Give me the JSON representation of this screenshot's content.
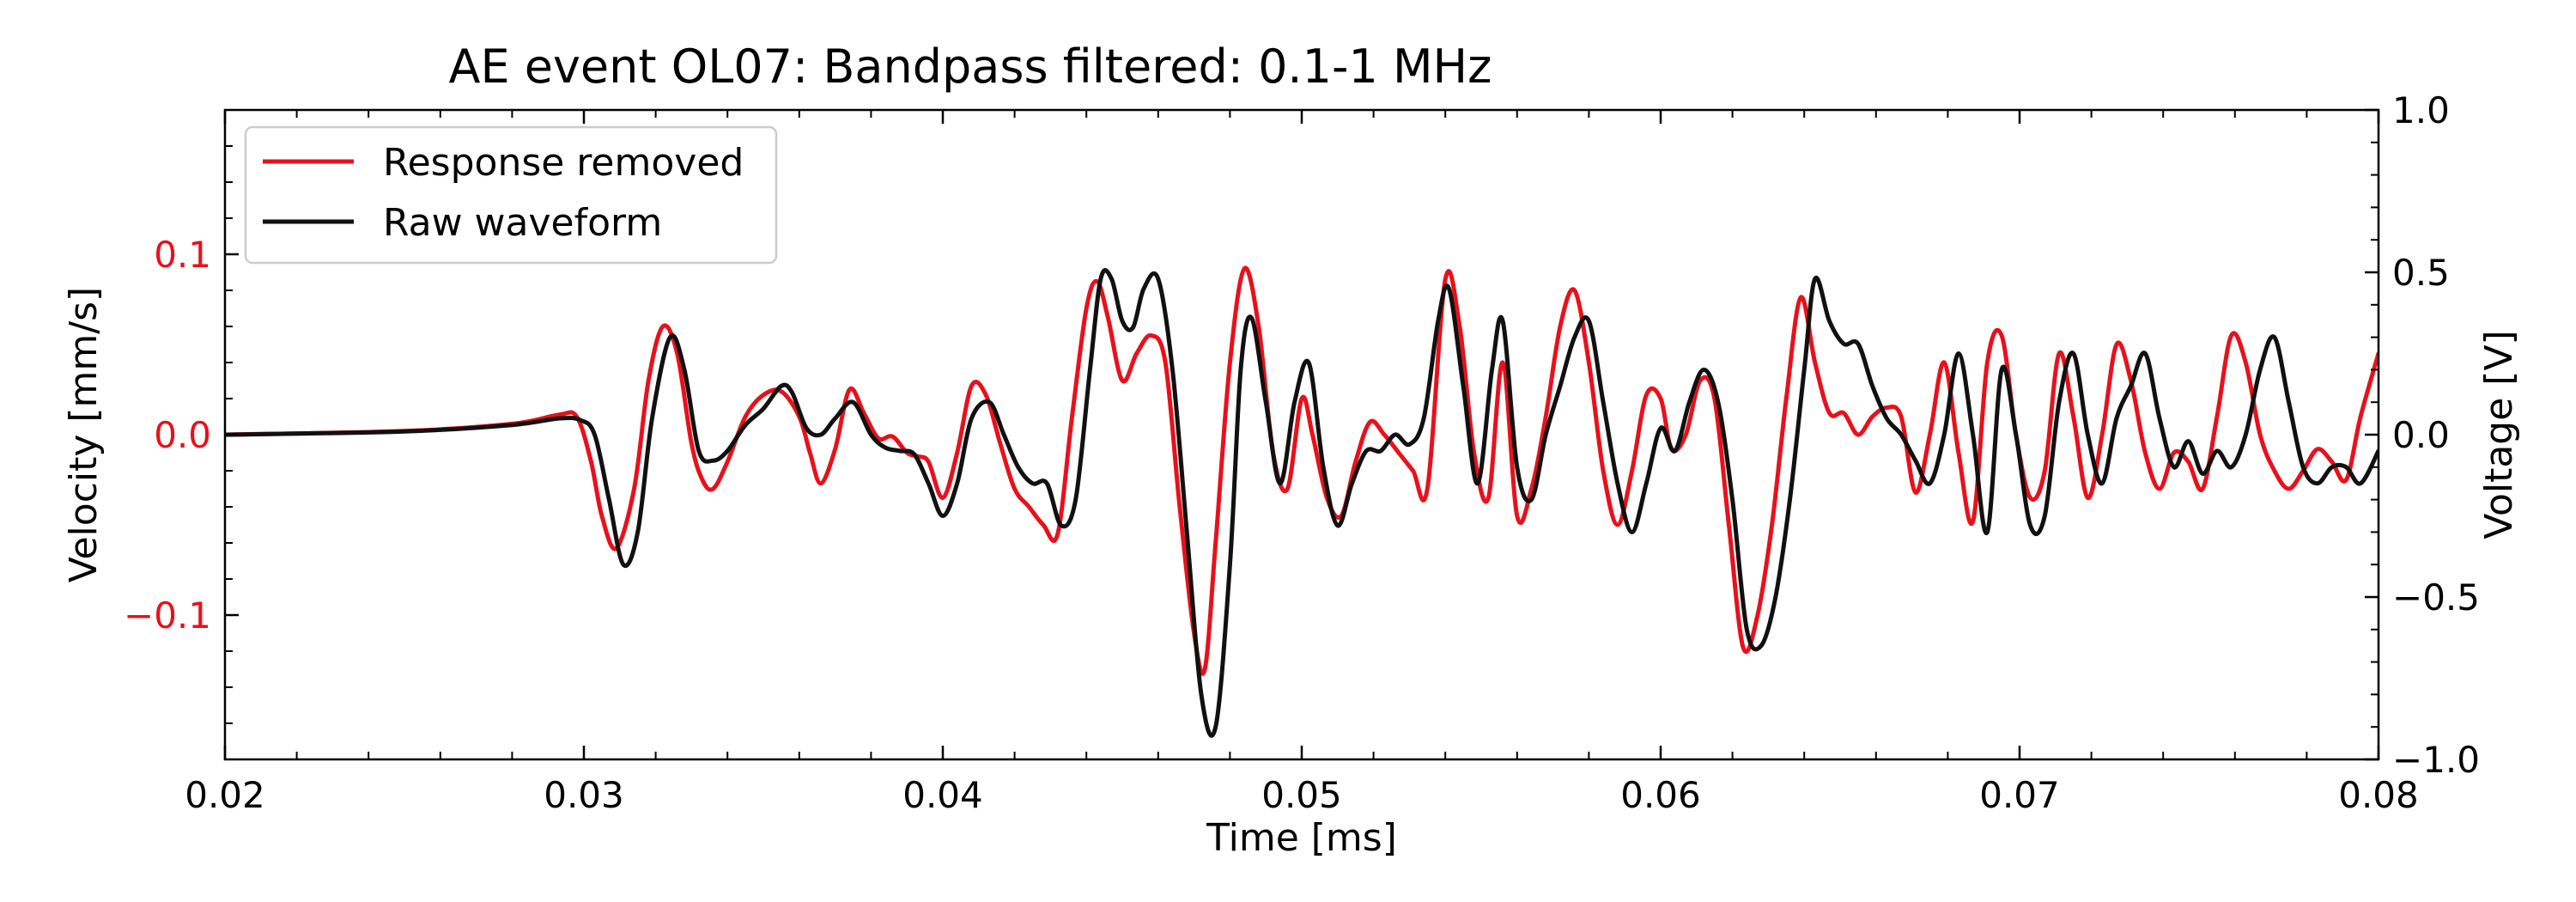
{
  "chart_data": {
    "type": "line",
    "title": "AE event OL07: Bandpass filtered: 0.1-1 MHz",
    "xlabel": "Time [ms]",
    "ylabel_left": "Velocity [mm/s]",
    "ylabel_right": "Voltage [V]",
    "xlim": [
      0.02,
      0.08
    ],
    "ylim_left": [
      -0.18,
      0.18
    ],
    "ylim_right": [
      -1.0,
      1.0
    ],
    "x_ticks": [
      0.02,
      0.03,
      0.04,
      0.05,
      0.06,
      0.07,
      0.08
    ],
    "x_tick_labels": [
      "0.02",
      "0.03",
      "0.04",
      "0.05",
      "0.06",
      "0.07",
      "0.08"
    ],
    "y_left_ticks": [
      -0.1,
      0.0,
      0.1
    ],
    "y_left_tick_labels": [
      "−0.1",
      "0.0",
      "0.1"
    ],
    "y_right_ticks": [
      -1.0,
      -0.5,
      0.0,
      0.5,
      1.0
    ],
    "y_right_tick_labels": [
      "−1.0",
      "−0.5",
      "0.0",
      "0.5",
      "1.0"
    ],
    "legend_position": "top-left",
    "grid": false,
    "colors": {
      "red": "#e8111b",
      "black": "#111111"
    },
    "series": [
      {
        "name": "Response removed",
        "axis": "left",
        "color": "#e8111b",
        "points": [
          [
            0.02,
            0.0
          ],
          [
            0.025,
            0.002
          ],
          [
            0.028,
            0.006
          ],
          [
            0.0293,
            0.011
          ],
          [
            0.0298,
            0.01
          ],
          [
            0.0302,
            -0.015
          ],
          [
            0.0305,
            -0.045
          ],
          [
            0.0309,
            -0.063
          ],
          [
            0.0314,
            -0.03
          ],
          [
            0.0318,
            0.03
          ],
          [
            0.0322,
            0.06
          ],
          [
            0.0326,
            0.045
          ],
          [
            0.033,
            -0.005
          ],
          [
            0.0333,
            -0.025
          ],
          [
            0.0336,
            -0.03
          ],
          [
            0.034,
            -0.015
          ],
          [
            0.0345,
            0.01
          ],
          [
            0.035,
            0.022
          ],
          [
            0.0355,
            0.024
          ],
          [
            0.036,
            0.01
          ],
          [
            0.0363,
            -0.01
          ],
          [
            0.0366,
            -0.027
          ],
          [
            0.037,
            -0.008
          ],
          [
            0.0374,
            0.025
          ],
          [
            0.0378,
            0.012
          ],
          [
            0.0382,
            -0.002
          ],
          [
            0.0386,
            -0.001
          ],
          [
            0.039,
            -0.01
          ],
          [
            0.0393,
            -0.012
          ],
          [
            0.0396,
            -0.015
          ],
          [
            0.04,
            -0.035
          ],
          [
            0.0404,
            -0.01
          ],
          [
            0.0408,
            0.027
          ],
          [
            0.0412,
            0.022
          ],
          [
            0.0416,
            -0.005
          ],
          [
            0.042,
            -0.03
          ],
          [
            0.0424,
            -0.04
          ],
          [
            0.0428,
            -0.05
          ],
          [
            0.0432,
            -0.055
          ],
          [
            0.0436,
            0.01
          ],
          [
            0.044,
            0.07
          ],
          [
            0.0443,
            0.085
          ],
          [
            0.0446,
            0.065
          ],
          [
            0.045,
            0.03
          ],
          [
            0.0454,
            0.045
          ],
          [
            0.0458,
            0.055
          ],
          [
            0.0462,
            0.04
          ],
          [
            0.0466,
            -0.04
          ],
          [
            0.047,
            -0.11
          ],
          [
            0.0473,
            -0.13
          ],
          [
            0.0476,
            -0.06
          ],
          [
            0.048,
            0.04
          ],
          [
            0.0484,
            0.092
          ],
          [
            0.0488,
            0.06
          ],
          [
            0.0492,
            -0.01
          ],
          [
            0.0496,
            -0.03
          ],
          [
            0.05,
            0.02
          ],
          [
            0.0503,
            0.0
          ],
          [
            0.0507,
            -0.035
          ],
          [
            0.0511,
            -0.045
          ],
          [
            0.0515,
            -0.015
          ],
          [
            0.0519,
            0.007
          ],
          [
            0.0523,
            0.0
          ],
          [
            0.0527,
            -0.01
          ],
          [
            0.0531,
            -0.02
          ],
          [
            0.0535,
            -0.03
          ],
          [
            0.054,
            0.086
          ],
          [
            0.0544,
            0.06
          ],
          [
            0.0548,
            -0.01
          ],
          [
            0.0552,
            -0.035
          ],
          [
            0.0556,
            0.04
          ],
          [
            0.056,
            -0.045
          ],
          [
            0.0564,
            -0.03
          ],
          [
            0.0568,
            0.01
          ],
          [
            0.0572,
            0.06
          ],
          [
            0.0576,
            0.08
          ],
          [
            0.058,
            0.04
          ],
          [
            0.0584,
            -0.02
          ],
          [
            0.0588,
            -0.05
          ],
          [
            0.0592,
            -0.02
          ],
          [
            0.0596,
            0.022
          ],
          [
            0.06,
            0.02
          ],
          [
            0.0603,
            -0.008
          ],
          [
            0.0607,
            0.0
          ],
          [
            0.0611,
            0.03
          ],
          [
            0.0615,
            0.02
          ],
          [
            0.0619,
            -0.05
          ],
          [
            0.0623,
            -0.118
          ],
          [
            0.0627,
            -0.1
          ],
          [
            0.0631,
            -0.05
          ],
          [
            0.0635,
            0.02
          ],
          [
            0.0639,
            0.076
          ],
          [
            0.0643,
            0.04
          ],
          [
            0.0647,
            0.012
          ],
          [
            0.0651,
            0.012
          ],
          [
            0.0655,
            0.0
          ],
          [
            0.0659,
            0.01
          ],
          [
            0.0663,
            0.015
          ],
          [
            0.0667,
            0.01
          ],
          [
            0.0671,
            -0.032
          ],
          [
            0.0675,
            0.0
          ],
          [
            0.0679,
            0.04
          ],
          [
            0.0683,
            -0.01
          ],
          [
            0.0687,
            -0.048
          ],
          [
            0.0691,
            0.04
          ],
          [
            0.0695,
            0.055
          ],
          [
            0.0699,
            0.0
          ],
          [
            0.0703,
            -0.035
          ],
          [
            0.0707,
            -0.02
          ],
          [
            0.0711,
            0.045
          ],
          [
            0.0715,
            0.01
          ],
          [
            0.0719,
            -0.035
          ],
          [
            0.0723,
            0.0
          ],
          [
            0.0727,
            0.05
          ],
          [
            0.0731,
            0.03
          ],
          [
            0.0735,
            -0.01
          ],
          [
            0.0739,
            -0.03
          ],
          [
            0.0743,
            -0.01
          ],
          [
            0.0747,
            -0.015
          ],
          [
            0.0751,
            -0.03
          ],
          [
            0.0755,
            0.01
          ],
          [
            0.0759,
            0.055
          ],
          [
            0.0763,
            0.04
          ],
          [
            0.0767,
            0.0
          ],
          [
            0.0771,
            -0.02
          ],
          [
            0.0775,
            -0.03
          ],
          [
            0.0779,
            -0.02
          ],
          [
            0.0783,
            -0.008
          ],
          [
            0.0787,
            -0.015
          ],
          [
            0.0791,
            -0.025
          ],
          [
            0.0795,
            0.01
          ],
          [
            0.08,
            0.045
          ]
        ]
      },
      {
        "name": "Raw waveform",
        "axis": "right",
        "color": "#111111",
        "points": [
          [
            0.02,
            0.0
          ],
          [
            0.025,
            0.01
          ],
          [
            0.028,
            0.03
          ],
          [
            0.0293,
            0.05
          ],
          [
            0.0299,
            0.045
          ],
          [
            0.0303,
            0.0
          ],
          [
            0.0307,
            -0.2
          ],
          [
            0.0311,
            -0.4
          ],
          [
            0.0315,
            -0.3
          ],
          [
            0.0319,
            0.05
          ],
          [
            0.0324,
            0.3
          ],
          [
            0.0328,
            0.2
          ],
          [
            0.0332,
            -0.05
          ],
          [
            0.0336,
            -0.08
          ],
          [
            0.034,
            -0.05
          ],
          [
            0.0345,
            0.03
          ],
          [
            0.035,
            0.08
          ],
          [
            0.0355,
            0.15
          ],
          [
            0.0358,
            0.13
          ],
          [
            0.0362,
            0.02
          ],
          [
            0.0366,
            0.0
          ],
          [
            0.037,
            0.05
          ],
          [
            0.0375,
            0.1
          ],
          [
            0.038,
            0.0
          ],
          [
            0.0384,
            -0.04
          ],
          [
            0.0388,
            -0.05
          ],
          [
            0.0392,
            -0.06
          ],
          [
            0.0396,
            -0.15
          ],
          [
            0.04,
            -0.25
          ],
          [
            0.0404,
            -0.15
          ],
          [
            0.0408,
            0.05
          ],
          [
            0.0413,
            0.1
          ],
          [
            0.0417,
            0.0
          ],
          [
            0.0421,
            -0.1
          ],
          [
            0.0425,
            -0.15
          ],
          [
            0.0429,
            -0.15
          ],
          [
            0.0433,
            -0.28
          ],
          [
            0.0437,
            -0.2
          ],
          [
            0.0441,
            0.2
          ],
          [
            0.0444,
            0.48
          ],
          [
            0.0447,
            0.48
          ],
          [
            0.045,
            0.35
          ],
          [
            0.0453,
            0.33
          ],
          [
            0.0456,
            0.45
          ],
          [
            0.046,
            0.48
          ],
          [
            0.0464,
            0.2
          ],
          [
            0.0468,
            -0.3
          ],
          [
            0.0472,
            -0.8
          ],
          [
            0.0476,
            -0.9
          ],
          [
            0.048,
            -0.4
          ],
          [
            0.0483,
            0.2
          ],
          [
            0.0486,
            0.36
          ],
          [
            0.049,
            0.1
          ],
          [
            0.0494,
            -0.15
          ],
          [
            0.0498,
            0.1
          ],
          [
            0.0502,
            0.22
          ],
          [
            0.0506,
            -0.1
          ],
          [
            0.051,
            -0.28
          ],
          [
            0.0514,
            -0.15
          ],
          [
            0.0518,
            -0.05
          ],
          [
            0.0522,
            -0.05
          ],
          [
            0.0526,
            0.0
          ],
          [
            0.053,
            -0.03
          ],
          [
            0.0534,
            0.05
          ],
          [
            0.0538,
            0.35
          ],
          [
            0.0541,
            0.45
          ],
          [
            0.0545,
            0.15
          ],
          [
            0.0549,
            -0.15
          ],
          [
            0.0553,
            0.2
          ],
          [
            0.0556,
            0.35
          ],
          [
            0.056,
            -0.1
          ],
          [
            0.0564,
            -0.2
          ],
          [
            0.0568,
            0.0
          ],
          [
            0.0572,
            0.15
          ],
          [
            0.0576,
            0.3
          ],
          [
            0.058,
            0.35
          ],
          [
            0.0584,
            0.1
          ],
          [
            0.0588,
            -0.15
          ],
          [
            0.0592,
            -0.3
          ],
          [
            0.0596,
            -0.15
          ],
          [
            0.06,
            0.02
          ],
          [
            0.0604,
            -0.05
          ],
          [
            0.0608,
            0.1
          ],
          [
            0.0612,
            0.2
          ],
          [
            0.0616,
            0.1
          ],
          [
            0.062,
            -0.2
          ],
          [
            0.0624,
            -0.6
          ],
          [
            0.0628,
            -0.65
          ],
          [
            0.0632,
            -0.5
          ],
          [
            0.0636,
            -0.2
          ],
          [
            0.064,
            0.2
          ],
          [
            0.0643,
            0.48
          ],
          [
            0.0647,
            0.35
          ],
          [
            0.0651,
            0.28
          ],
          [
            0.0655,
            0.28
          ],
          [
            0.0659,
            0.15
          ],
          [
            0.0663,
            0.05
          ],
          [
            0.0667,
            0.0
          ],
          [
            0.0671,
            -0.08
          ],
          [
            0.0675,
            -0.15
          ],
          [
            0.0679,
            0.0
          ],
          [
            0.0683,
            0.25
          ],
          [
            0.0687,
            0.0
          ],
          [
            0.0691,
            -0.3
          ],
          [
            0.0695,
            0.2
          ],
          [
            0.0699,
            0.0
          ],
          [
            0.0703,
            -0.28
          ],
          [
            0.0707,
            -0.25
          ],
          [
            0.0711,
            0.1
          ],
          [
            0.0715,
            0.25
          ],
          [
            0.0719,
            0.0
          ],
          [
            0.0723,
            -0.15
          ],
          [
            0.0727,
            0.05
          ],
          [
            0.0731,
            0.15
          ],
          [
            0.0735,
            0.25
          ],
          [
            0.0739,
            0.05
          ],
          [
            0.0743,
            -0.1
          ],
          [
            0.0747,
            -0.02
          ],
          [
            0.0751,
            -0.12
          ],
          [
            0.0755,
            -0.05
          ],
          [
            0.0759,
            -0.1
          ],
          [
            0.0763,
            0.0
          ],
          [
            0.0767,
            0.2
          ],
          [
            0.0771,
            0.3
          ],
          [
            0.0775,
            0.1
          ],
          [
            0.0779,
            -0.1
          ],
          [
            0.0783,
            -0.15
          ],
          [
            0.0787,
            -0.1
          ],
          [
            0.0791,
            -0.1
          ],
          [
            0.0795,
            -0.15
          ],
          [
            0.08,
            -0.05
          ]
        ]
      }
    ]
  }
}
